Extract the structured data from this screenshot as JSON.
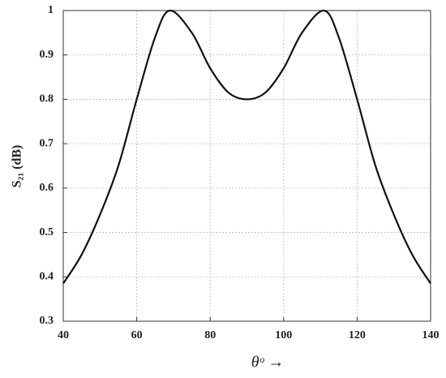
{
  "chart_data": {
    "type": "line",
    "x_label": "θᵒ →",
    "y_label": "S₂₁ (dB)",
    "x": [
      40,
      45,
      50,
      55,
      60,
      65,
      69,
      75,
      80,
      85,
      90,
      95,
      100,
      105,
      111,
      115,
      120,
      125,
      130,
      135,
      140
    ],
    "series": [
      {
        "color": "#111111",
        "values": [
          0.385,
          0.45,
          0.54,
          0.65,
          0.8,
          0.94,
          1.0,
          0.95,
          0.87,
          0.815,
          0.8,
          0.815,
          0.87,
          0.95,
          1.0,
          0.94,
          0.8,
          0.65,
          0.54,
          0.45,
          0.385
        ]
      }
    ],
    "xlim": [
      40,
      140
    ],
    "xticks": [
      40,
      60,
      80,
      100,
      120,
      140
    ],
    "ylim": [
      0.3,
      1
    ],
    "yticks": [
      0.3,
      0.4,
      0.5,
      0.6,
      0.7,
      0.8,
      0.9,
      1
    ],
    "grid": true
  }
}
